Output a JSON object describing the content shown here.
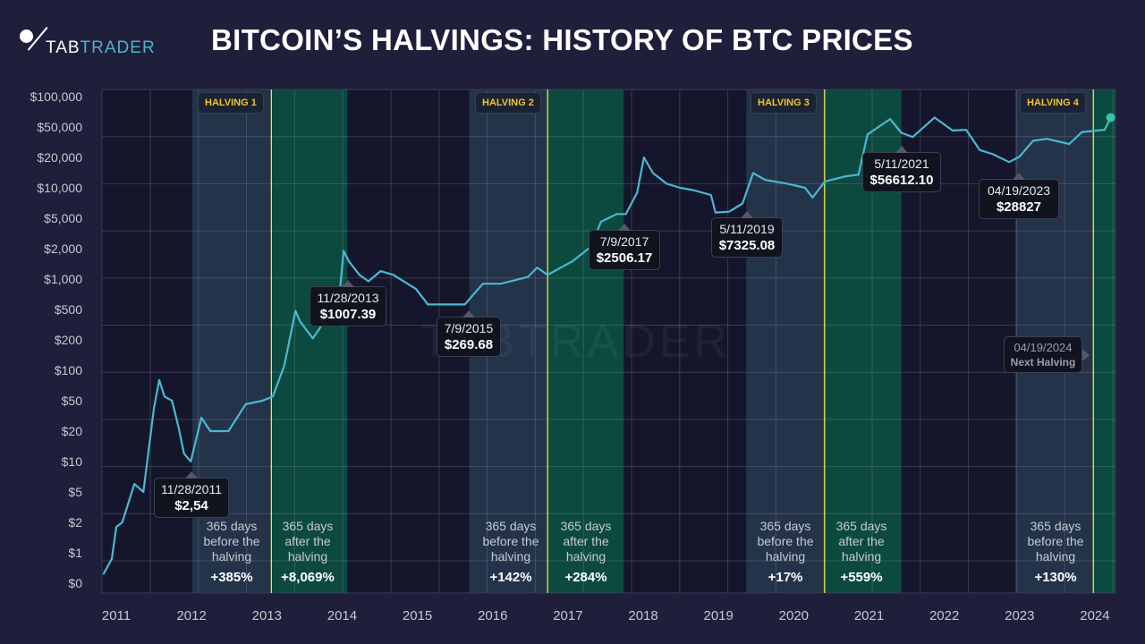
{
  "brand": {
    "logo_part1": "TAB",
    "logo_part2": "TRADER",
    "watermark": "TABTRADER"
  },
  "title": "BITCOIN’S HALVINGS: HISTORY OF BTC PRICES",
  "colors": {
    "background": "#1f1e3b",
    "plot_bg": "#15162b",
    "before_band": "#23334a",
    "after_band": "#0c4a3f",
    "halving_line": "#f5e63a",
    "price_line": "#4bb8d0",
    "price_line_after": "#3cc0a6",
    "label_text": "#f2c230"
  },
  "chart_data": {
    "type": "line",
    "title": "BITCOIN’S HALVINGS: HISTORY OF BTC PRICES",
    "xlabel": "",
    "ylabel": "",
    "y_scale": "log (equally spaced 1-2-5 ticks)",
    "grid": true,
    "x_ticks": [
      "2011",
      "2012",
      "2013",
      "2014",
      "2015",
      "2016",
      "2017",
      "2018",
      "2019",
      "2020",
      "2021",
      "2022",
      "2023",
      "2024"
    ],
    "y_ticks": [
      {
        "value": 0,
        "label": "$0"
      },
      {
        "value": 1,
        "label": "$1"
      },
      {
        "value": 2,
        "label": "$2"
      },
      {
        "value": 5,
        "label": "$5"
      },
      {
        "value": 10,
        "label": "$10"
      },
      {
        "value": 20,
        "label": "$20"
      },
      {
        "value": 50,
        "label": "$50"
      },
      {
        "value": 100,
        "label": "$100"
      },
      {
        "value": 200,
        "label": "$200"
      },
      {
        "value": 500,
        "label": "$500"
      },
      {
        "value": 1000,
        "label": "$1,000"
      },
      {
        "value": 2000,
        "label": "$2,000"
      },
      {
        "value": 5000,
        "label": "$5,000"
      },
      {
        "value": 10000,
        "label": "$10,000"
      },
      {
        "value": 20000,
        "label": "$20,000"
      },
      {
        "value": 50000,
        "label": "$50,000"
      },
      {
        "value": 100000,
        "label": "$100,000"
      }
    ],
    "xlim": [
      2010.81,
      2024.27
    ],
    "series": [
      {
        "x": [
          2010.83,
          2010.94,
          2011.0,
          2011.08,
          2011.24,
          2011.36,
          2011.5,
          2011.57,
          2011.64,
          2011.74,
          2011.83,
          2011.9,
          2011.99,
          2012.13,
          2012.25,
          2012.49,
          2012.72,
          2012.94,
          2013.08,
          2013.23,
          2013.38,
          2013.44,
          2013.61,
          2013.7,
          2013.97,
          2014.02,
          2014.09,
          2014.23,
          2014.35,
          2014.51,
          2014.68,
          2014.98,
          2015.14,
          2015.4,
          2015.63,
          2015.87,
          2016.11,
          2016.47,
          2016.59,
          2016.73,
          2017.06,
          2017.3,
          2017.44,
          2017.65,
          2017.77,
          2017.92,
          2018.01,
          2018.13,
          2018.31,
          2018.49,
          2018.66,
          2018.9,
          2018.96,
          2019.14,
          2019.32,
          2019.46,
          2019.62,
          2019.91,
          2020.15,
          2020.25,
          2020.41,
          2020.69,
          2020.86,
          2020.98,
          2021.28,
          2021.43,
          2021.58,
          2021.87,
          2022.11,
          2022.29,
          2022.47,
          2022.65,
          2022.86,
          2023.0,
          2023.18,
          2023.36,
          2023.66,
          2023.83,
          2024.13,
          2024.21
        ],
        "y": [
          0.3,
          0.8,
          1.8,
          2,
          6,
          5,
          40,
          80,
          55,
          50,
          22,
          12,
          10,
          30,
          20,
          20,
          45,
          50,
          55,
          110,
          480,
          350,
          210,
          280,
          750,
          1900,
          1500,
          1100,
          950,
          1200,
          1100,
          800,
          560,
          560,
          560,
          900,
          900,
          1050,
          1300,
          1100,
          1500,
          2100,
          4500,
          5500,
          5500,
          9000,
          20000,
          14000,
          11000,
          10000,
          9500,
          8500,
          5700,
          5800,
          7000,
          14000,
          12000,
          11000,
          10000,
          8000,
          11500,
          13000,
          13500,
          40000,
          60000,
          42000,
          37000,
          62000,
          45000,
          46000,
          25000,
          22000,
          18000,
          20500,
          33000,
          35000,
          30000,
          43000,
          46000,
          62000
        ]
      }
    ],
    "halvings": [
      {
        "label": "HALVING 1",
        "x": 2013.06,
        "before_start": 2012.01,
        "after_end": 2014.07
      },
      {
        "label": "HALVING 2",
        "x": 2016.73,
        "before_start": 2015.69,
        "after_end": 2017.74
      },
      {
        "label": "HALVING 3",
        "x": 2020.41,
        "before_start": 2019.37,
        "after_end": 2021.43
      },
      {
        "label": "HALVING 4",
        "x": 2023.98,
        "before_start": 2022.94,
        "after_end": 2024.27
      }
    ],
    "annotations": [
      {
        "date": "11/28/2011",
        "price": "$2,54"
      },
      {
        "date": "11/28/2013",
        "price": "$1007.39"
      },
      {
        "date": "7/9/2015",
        "price": "$269.68"
      },
      {
        "date": "7/9/2017",
        "price": "$2506.17"
      },
      {
        "date": "5/11/2019",
        "price": "$7325.08"
      },
      {
        "date": "5/11/2021",
        "price": "$56612.10"
      },
      {
        "date": "04/19/2023",
        "price": "$28827"
      },
      {
        "date": "04/19/2024",
        "price": "Next Halving"
      }
    ],
    "band_texts": [
      {
        "l1": "365 days",
        "l2": "before the",
        "l3": "halving",
        "pct": "+385%"
      },
      {
        "l1": "365 days",
        "l2": "after the",
        "l3": "halving",
        "pct": "+8,069%"
      },
      {
        "l1": "365 days",
        "l2": "before the",
        "l3": "halving",
        "pct": "+142%"
      },
      {
        "l1": "365 days",
        "l2": "after the",
        "l3": "halving",
        "pct": "+284%"
      },
      {
        "l1": "365 days",
        "l2": "before the",
        "l3": "halving",
        "pct": "+17%"
      },
      {
        "l1": "365 days",
        "l2": "after the",
        "l3": "halving",
        "pct": "+559%"
      },
      {
        "l1": "365 days",
        "l2": "before the",
        "l3": "halving",
        "pct": "+130%"
      }
    ]
  }
}
